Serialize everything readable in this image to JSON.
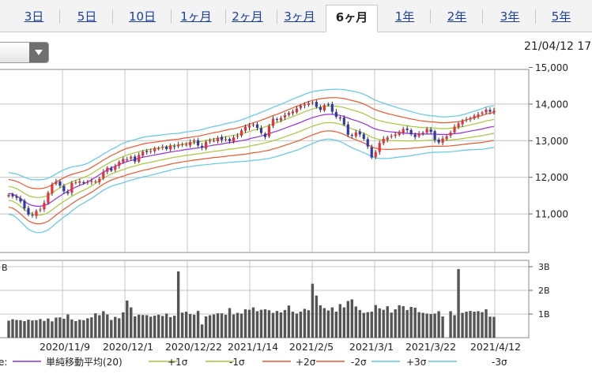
{
  "tabs": [
    {
      "label": "3日",
      "active": false
    },
    {
      "label": "5日",
      "active": false
    },
    {
      "label": "10日",
      "active": false
    },
    {
      "label": "1ヶ月",
      "active": false
    },
    {
      "label": "2ヶ月",
      "active": false
    },
    {
      "label": "3ヶ月",
      "active": false
    },
    {
      "label": "6ヶ月",
      "active": true
    },
    {
      "label": "1年",
      "active": false
    },
    {
      "label": "2年",
      "active": false
    },
    {
      "label": "3年",
      "active": false
    },
    {
      "label": "5年",
      "active": false
    }
  ],
  "timestamp": "21/04/12 17",
  "dropdown_icon": "chevron-down-icon",
  "chart_data": {
    "type": "candlestick",
    "colors": {
      "up": "#e8323a",
      "down": "#2f3aa8",
      "sma": "#9a2ee0",
      "sigma1": "#a6c83a",
      "sigma2": "#f0562c",
      "sigma3": "#5ec8e8",
      "volume": "#555555",
      "grid": "#c4c4c4"
    },
    "price_axis": {
      "ylim": [
        10000,
        15000
      ],
      "ticks": [
        "15,000",
        "14,000",
        "13,000",
        "12,000",
        "11,000"
      ]
    },
    "volume_axis": {
      "ylim": [
        0,
        3
      ],
      "ticks": [
        "3B",
        "2B",
        "1B"
      ],
      "unit_label": "B"
    },
    "x_ticks": [
      "2020/11/9",
      "2020/12/1",
      "2020/12/22",
      "2021/1/14",
      "2021/2/5",
      "2021/3/1",
      "2021/3/22",
      "2021/4/12"
    ],
    "close": [
      11520,
      11480,
      11440,
      11340,
      11150,
      10980,
      10960,
      11080,
      11120,
      11300,
      11580,
      11800,
      11880,
      11770,
      11620,
      11560,
      11850,
      11860,
      11890,
      11840,
      11870,
      11900,
      11890,
      11960,
      12150,
      12260,
      12180,
      12300,
      12420,
      12500,
      12490,
      12560,
      12430,
      12610,
      12700,
      12690,
      12720,
      12800,
      12790,
      12830,
      12770,
      12870,
      12830,
      12890,
      12900,
      12890,
      12960,
      13010,
      12870,
      12810,
      12970,
      13000,
      13000,
      13080,
      13020,
      13050,
      12990,
      13090,
      13130,
      13280,
      13380,
      13410,
      13440,
      13350,
      13210,
      13100,
      13400,
      13600,
      13580,
      13620,
      13700,
      13760,
      13800,
      13880,
      13960,
      13990,
      14020,
      14050,
      13920,
      13840,
      13970,
      13990,
      13790,
      13650,
      13610,
      13440,
      13160,
      13140,
      13230,
      13170,
      13050,
      12840,
      12540,
      12690,
      12940,
      13050,
      13090,
      13130,
      13170,
      13240,
      13320,
      13290,
      13180,
      13100,
      13190,
      13220,
      13320,
      13240,
      13020,
      12950,
      13060,
      13120,
      13220,
      13380,
      13470,
      13540,
      13580,
      13620,
      13680,
      13720,
      13770,
      13850,
      13790,
      13820
    ],
    "sma20": [
      11560,
      11540,
      11490,
      11420,
      11340,
      11270,
      11230,
      11210,
      11210,
      11230,
      11270,
      11340,
      11420,
      11490,
      11560,
      11620,
      11680,
      11730,
      11780,
      11820,
      11870,
      11930,
      12000,
      12070,
      12140,
      12200,
      12260,
      12300,
      12350,
      12390,
      12430,
      12460,
      12490,
      12520,
      12550,
      12570,
      12590,
      12610,
      12630,
      12650,
      12670,
      12690,
      12710,
      12720,
      12740,
      12760,
      12770,
      12790,
      12800,
      12820,
      12840,
      12860,
      12880,
      12890,
      12910,
      12930,
      12950,
      12960,
      12980,
      13000,
      13020,
      13050,
      13080,
      13100,
      13130,
      13160,
      13190,
      13230,
      13260,
      13300,
      13340,
      13380,
      13420,
      13460,
      13500,
      13550,
      13590,
      13630,
      13660,
      13690,
      13710,
      13720,
      13720,
      13710,
      13690,
      13660,
      13620,
      13580,
      13550,
      13510,
      13470,
      13420,
      13360,
      13320,
      13290,
      13270,
      13250,
      13240,
      13230,
      13220,
      13210,
      13200,
      13190,
      13190,
      13180,
      13180,
      13180,
      13180,
      13180,
      13170,
      13170,
      13170,
      13180,
      13190,
      13200,
      13220,
      13240,
      13260,
      13280,
      13300,
      13320,
      13350,
      13370,
      13390
    ],
    "sigma": [
      190,
      190,
      200,
      210,
      220,
      230,
      235,
      240,
      240,
      238,
      235,
      230,
      225,
      220,
      215,
      210,
      200,
      190,
      180,
      175,
      170,
      170,
      168,
      165,
      165,
      165,
      168,
      170,
      175,
      180,
      180,
      180,
      180,
      180,
      180,
      180,
      178,
      175,
      172,
      170,
      168,
      165,
      162,
      160,
      160,
      160,
      160,
      160,
      160,
      162,
      165,
      168,
      170,
      172,
      175,
      178,
      180,
      182,
      185,
      190,
      195,
      200,
      205,
      210,
      215,
      220,
      225,
      228,
      230,
      232,
      234,
      236,
      238,
      240,
      240,
      240,
      238,
      236,
      232,
      228,
      225,
      225,
      228,
      232,
      238,
      245,
      252,
      258,
      262,
      265,
      266,
      266,
      265,
      262,
      258,
      252,
      245,
      238,
      230,
      222,
      215,
      208,
      200,
      192,
      185,
      178,
      172,
      168,
      165,
      162,
      160,
      160,
      160,
      160,
      160,
      162,
      165,
      170,
      175,
      180,
      185,
      190,
      190,
      190
    ],
    "volume": [
      0.72,
      0.78,
      0.75,
      0.74,
      0.7,
      0.76,
      0.73,
      0.74,
      0.79,
      0.71,
      0.81,
      0.69,
      0.85,
      0.86,
      0.8,
      0.98,
      0.77,
      0.7,
      0.76,
      0.74,
      0.82,
      0.86,
      1.03,
      0.95,
      1.12,
      0.98,
      0.75,
      0.88,
      0.82,
      1.07,
      1.57,
      1.28,
      0.9,
      0.97,
      0.96,
      0.95,
      0.89,
      0.93,
      0.97,
      0.92,
      1.02,
      0.87,
      0.93,
      2.8,
      1.06,
      1.1,
      1.0,
      0.97,
      1.13,
      0.56,
      0.9,
      0.95,
      0.98,
      1.03,
      1.03,
      0.97,
      1.25,
      0.98,
      1.05,
      1.02,
      1.2,
      1.18,
      1.28,
      1.12,
      1.18,
      1.2,
      1.16,
      1.05,
      1.13,
      1.07,
      1.17,
      1.36,
      1.1,
      1.02,
      1.1,
      1.22,
      1.16,
      2.28,
      1.78,
      1.37,
      1.25,
      1.15,
      1.28,
      1.1,
      1.42,
      1.28,
      1.55,
      1.62,
      1.32,
      1.17,
      1.05,
      1.08,
      1.1,
      1.38,
      1.24,
      1.18,
      1.33,
      1.06,
      1.2,
      1.37,
      1.33,
      1.17,
      1.3,
      1.27,
      1.08,
      1.05,
      1.02,
      1.0,
      1.02,
      1.12,
      0.9,
      1.1,
      1.12,
      0.95,
      2.9,
      1.05,
      1.1,
      1.13,
      1.1,
      1.12,
      1.08,
      1.2,
      0.89,
      0.88
    ],
    "volume_gaps": [
      111
    ],
    "legend": [
      {
        "label": "単純移動平均(20)",
        "key": "sma"
      },
      {
        "label": "+1σ",
        "key": "sigma1"
      },
      {
        "label": "-1σ",
        "key": "sigma1"
      },
      {
        "label": "+2σ",
        "key": "sigma2"
      },
      {
        "label": "-2σ",
        "key": "sigma2"
      },
      {
        "label": "+3σ",
        "key": "sigma3"
      },
      {
        "label": "-3σ",
        "key": "sigma3"
      }
    ],
    "legend_lead": "e:"
  }
}
